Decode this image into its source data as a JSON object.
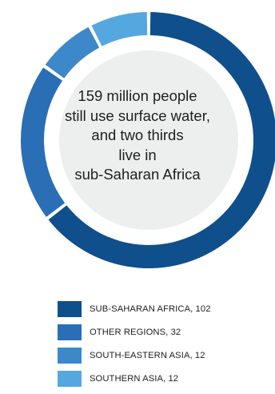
{
  "chart_data": {
    "type": "pie",
    "style": "donut",
    "center_text": [
      "159 million people",
      "still use surface water,",
      "and two thirds",
      "live in",
      "sub-Saharan Africa"
    ],
    "series": [
      {
        "name": "SUB-SAHARAN AFRICA",
        "value": 102,
        "color": "#0f4f8c"
      },
      {
        "name": "OTHER REGIONS",
        "value": 32,
        "color": "#2a6eb6"
      },
      {
        "name": "SOUTH-EASTERN ASIA",
        "value": 12,
        "color": "#3c88c8"
      },
      {
        "name": "SOUTHERN ASIA",
        "value": 12,
        "color": "#55a7e0"
      }
    ],
    "legend_labels": [
      "SUB-SAHARAN AFRICA, 102",
      "OTHER REGIONS, 32",
      "SOUTH-EASTERN ASIA, 12",
      "SOUTHERN ASIA, 12"
    ],
    "center_fill": "#edefee",
    "legend_placement": "bottom"
  }
}
